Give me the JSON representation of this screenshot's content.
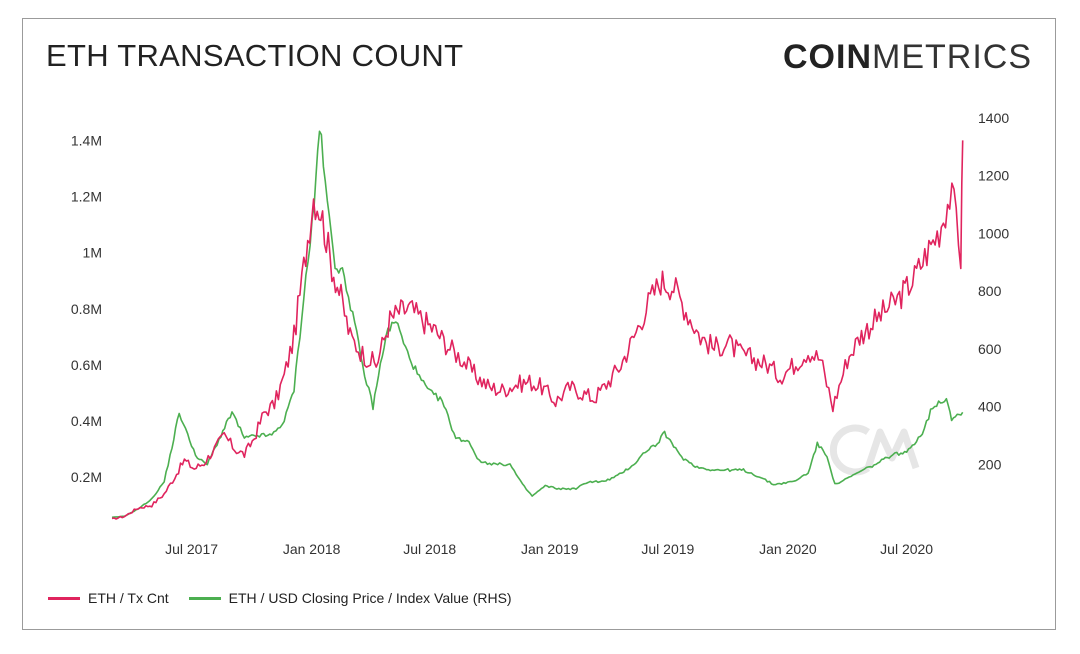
{
  "header": {
    "title": "ETH TRANSACTION COUNT",
    "brand_bold": "COIN",
    "brand_light": "METRICS"
  },
  "colors": {
    "tx_cnt": "#e0245e",
    "price": "#4caf50",
    "watermark": "#e6e6e6"
  },
  "chart_data": {
    "type": "line",
    "title": "ETH TRANSACTION COUNT",
    "xlabel": "",
    "ylabel": "",
    "x_tick_labels": [
      "Jul 2017",
      "Jan 2018",
      "Jul 2018",
      "Jan 2019",
      "Jul 2019",
      "Jan 2020",
      "Jul 2020"
    ],
    "x_tick_dates": [
      "2017-07-01",
      "2018-01-01",
      "2018-07-01",
      "2019-01-01",
      "2019-07-01",
      "2020-01-01",
      "2020-07-01"
    ],
    "xlim": [
      "2017-03-01",
      "2020-09-30"
    ],
    "y_left": {
      "ticks": [
        "0.2M",
        "0.4M",
        "0.6M",
        "0.8M",
        "1M",
        "1.2M",
        "1.4M"
      ],
      "tick_values": [
        200000,
        400000,
        600000,
        800000,
        1000000,
        1200000,
        1400000
      ],
      "ylim": [
        40000,
        1480000
      ]
    },
    "y_right": {
      "ticks": [
        "200",
        "400",
        "600",
        "800",
        "1000",
        "1200",
        "1400"
      ],
      "tick_values": [
        200,
        400,
        600,
        800,
        1000,
        1200,
        1400
      ],
      "ylim": [
        0,
        1400
      ]
    },
    "grid": false,
    "legend_position": "bottom-left",
    "series": [
      {
        "name": "ETH / Tx Cnt",
        "axis": "left",
        "x": [
          "2017-03-01",
          "2017-03-20",
          "2017-04-10",
          "2017-05-01",
          "2017-05-20",
          "2017-06-05",
          "2017-06-20",
          "2017-07-05",
          "2017-07-20",
          "2017-08-05",
          "2017-08-20",
          "2017-09-05",
          "2017-09-20",
          "2017-10-05",
          "2017-10-20",
          "2017-11-05",
          "2017-11-20",
          "2017-12-05",
          "2017-12-20",
          "2018-01-04",
          "2018-01-15",
          "2018-02-01",
          "2018-02-15",
          "2018-03-01",
          "2018-03-20",
          "2018-04-10",
          "2018-05-01",
          "2018-05-15",
          "2018-06-01",
          "2018-06-20",
          "2018-07-10",
          "2018-08-01",
          "2018-08-20",
          "2018-09-10",
          "2018-10-01",
          "2018-10-20",
          "2018-11-10",
          "2018-12-01",
          "2018-12-20",
          "2019-01-10",
          "2019-02-01",
          "2019-02-20",
          "2019-03-10",
          "2019-04-01",
          "2019-04-20",
          "2019-05-10",
          "2019-06-01",
          "2019-06-20",
          "2019-07-10",
          "2019-08-01",
          "2019-08-20",
          "2019-09-10",
          "2019-10-01",
          "2019-10-20",
          "2019-11-10",
          "2019-12-01",
          "2019-12-20",
          "2020-01-10",
          "2020-02-01",
          "2020-02-20",
          "2020-03-10",
          "2020-04-01",
          "2020-04-20",
          "2020-05-10",
          "2020-06-01",
          "2020-06-20",
          "2020-07-10",
          "2020-08-01",
          "2020-08-20",
          "2020-09-05",
          "2020-09-15",
          "2020-09-22",
          "2020-09-25"
        ],
        "values": [
          50000,
          60000,
          90000,
          100000,
          140000,
          200000,
          260000,
          230000,
          250000,
          300000,
          350000,
          300000,
          280000,
          340000,
          430000,
          460000,
          560000,
          700000,
          950000,
          1200000,
          1150000,
          950000,
          840000,
          700000,
          640000,
          600000,
          760000,
          790000,
          800000,
          760000,
          720000,
          660000,
          620000,
          560000,
          520000,
          510000,
          530000,
          540000,
          520000,
          470000,
          520000,
          500000,
          480000,
          540000,
          600000,
          700000,
          820000,
          900000,
          880000,
          780000,
          700000,
          660000,
          680000,
          640000,
          620000,
          600000,
          560000,
          600000,
          650000,
          620000,
          450000,
          620000,
          700000,
          750000,
          800000,
          840000,
          900000,
          1000000,
          1080000,
          1200000,
          1150000,
          980000,
          1400000
        ]
      },
      {
        "name": "ETH / USD Closing Price / Index Value (RHS)",
        "axis": "right",
        "x": [
          "2017-03-01",
          "2017-03-20",
          "2017-04-10",
          "2017-05-01",
          "2017-05-20",
          "2017-06-01",
          "2017-06-12",
          "2017-06-25",
          "2017-07-10",
          "2017-07-25",
          "2017-08-15",
          "2017-09-01",
          "2017-09-20",
          "2017-10-10",
          "2017-11-01",
          "2017-11-20",
          "2017-12-05",
          "2017-12-20",
          "2018-01-05",
          "2018-01-13",
          "2018-01-25",
          "2018-02-06",
          "2018-02-20",
          "2018-03-05",
          "2018-03-20",
          "2018-04-05",
          "2018-04-25",
          "2018-05-10",
          "2018-05-25",
          "2018-06-15",
          "2018-07-01",
          "2018-07-20",
          "2018-08-10",
          "2018-08-30",
          "2018-09-15",
          "2018-10-10",
          "2018-11-01",
          "2018-11-20",
          "2018-12-05",
          "2018-12-25",
          "2019-01-15",
          "2019-02-10",
          "2019-03-01",
          "2019-03-25",
          "2019-04-15",
          "2019-05-10",
          "2019-05-30",
          "2019-06-15",
          "2019-06-26",
          "2019-07-10",
          "2019-07-25",
          "2019-08-15",
          "2019-09-10",
          "2019-09-25",
          "2019-10-25",
          "2019-11-15",
          "2019-12-10",
          "2020-01-10",
          "2020-02-01",
          "2020-02-15",
          "2020-03-01",
          "2020-03-13",
          "2020-04-01",
          "2020-04-25",
          "2020-05-15",
          "2020-06-10",
          "2020-07-01",
          "2020-07-25",
          "2020-08-10",
          "2020-08-31",
          "2020-09-08",
          "2020-09-25"
        ],
        "values": [
          16,
          20,
          45,
          80,
          140,
          260,
          380,
          300,
          220,
          200,
          300,
          380,
          290,
          300,
          300,
          350,
          460,
          780,
          1100,
          1380,
          1100,
          900,
          850,
          720,
          540,
          400,
          650,
          700,
          600,
          500,
          450,
          420,
          290,
          280,
          210,
          200,
          200,
          130,
          90,
          125,
          115,
          115,
          140,
          140,
          160,
          200,
          250,
          270,
          310,
          260,
          220,
          190,
          180,
          180,
          180,
          160,
          130,
          140,
          170,
          270,
          230,
          130,
          150,
          180,
          200,
          235,
          240,
          310,
          400,
          430,
          360,
          380
        ]
      }
    ]
  },
  "legend": {
    "tx_label": "ETH / Tx Cnt",
    "price_label": "ETH / USD Closing Price / Index Value (RHS)"
  }
}
